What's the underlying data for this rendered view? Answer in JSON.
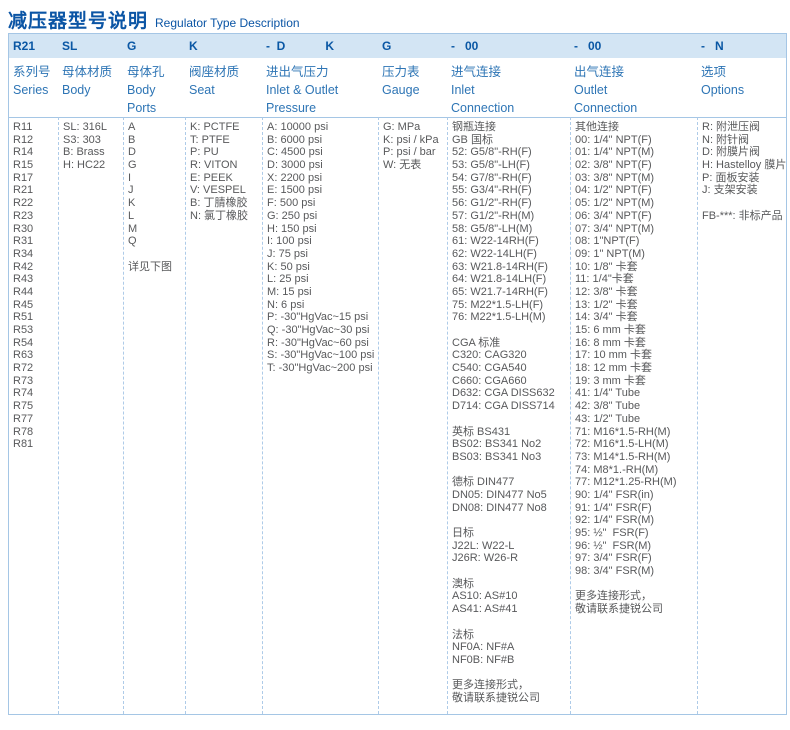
{
  "page": {
    "title_cn": "减压器型号说明",
    "title_en": "Regulator Type Description"
  },
  "colors": {
    "title_blue": "#0b55a5",
    "header_band_bg": "#d3e5f4",
    "header_code_text": "#0a57a4",
    "label_text": "#2e75b5",
    "body_text": "#58595b",
    "border_solid": "#a5c6e5",
    "border_dashed": "#aecbe8"
  },
  "table": {
    "columns": [
      {
        "code": "R21",
        "label_cn": "系列号",
        "label_en": "Series",
        "lines": [
          "R11",
          "R12",
          "R14",
          "R15",
          "R17",
          "R21",
          "R22",
          "R23",
          "R30",
          "R31",
          "R34",
          "R42",
          "R43",
          "R44",
          "R45",
          "R51",
          "R53",
          "R54",
          "R63",
          "R72",
          "R73",
          "R74",
          "R75",
          "R77",
          "R78",
          "R81"
        ]
      },
      {
        "code": "SL",
        "label_cn": "母体材质",
        "label_en": "Body",
        "lines": [
          "SL: 316L",
          "S3: 303",
          "B: Brass",
          "H: HC22"
        ]
      },
      {
        "code": "G",
        "label_cn": "母体孔",
        "label_en": "Body\nPorts",
        "lines": [
          "A",
          "B",
          "D",
          "G",
          "I",
          "J",
          "K",
          "L",
          "M",
          "Q",
          "",
          "详见下图"
        ]
      },
      {
        "code": "K",
        "label_cn": "阀座材质",
        "label_en": "Seat",
        "lines": [
          "K: PCTFE",
          "T: PTFE",
          "P: PU",
          "R: VITON",
          "E: PEEK",
          "V: VESPEL",
          "B: 丁腈橡胶",
          "N: 氯丁橡胶"
        ]
      },
      {
        "code": "-  D            K",
        "label_cn": "进出气压力",
        "label_en": "Inlet & Outlet\nPressure",
        "lines": [
          "A: 10000 psi",
          "B: 6000 psi",
          "C: 4500 psi",
          "D: 3000 psi",
          "X: 2200 psi",
          "E: 1500 psi",
          "F: 500 psi",
          "G: 250 psi",
          "H: 150 psi",
          "I: 100 psi",
          "J: 75 psi",
          "K: 50 psi",
          "L: 25 psi",
          "M: 15 psi",
          "N: 6 psi",
          "P: -30\"HgVac~15 psi",
          "Q: -30\"HgVac~30 psi",
          "R: -30\"HgVac~60 psi",
          "S: -30\"HgVac~100 psi",
          "T: -30\"HgVac~200 psi"
        ]
      },
      {
        "code": "G",
        "label_cn": "压力表",
        "label_en": "Gauge",
        "lines": [
          "G: MPa",
          "K: psi / kPa",
          "P: psi / bar",
          "W: 无表"
        ]
      },
      {
        "code": "-   00",
        "label_cn": "进气连接",
        "label_en": "Inlet\nConnection",
        "lines": [
          "钢瓶连接",
          "GB 国标",
          "52: G5/8\"-RH(F)",
          "53: G5/8\"-LH(F)",
          "54: G7/8\"-RH(F)",
          "55: G3/4\"-RH(F)",
          "56: G1/2\"-RH(F)",
          "57: G1/2\"-RH(M)",
          "58: G5/8\"-LH(M)",
          "61: W22-14RH(F)",
          "62: W22-14LH(F)",
          "63: W21.8-14RH(F)",
          "64: W21.8-14LH(F)",
          "65: W21.7-14RH(F)",
          "75: M22*1.5-LH(F)",
          "76: M22*1.5-LH(M)",
          "",
          "CGA 标准",
          "C320: CAG320",
          "C540: CGA540",
          "C660: CGA660",
          "D632: CGA DISS632",
          "D714: CGA DISS714",
          "",
          "英标 BS431",
          "BS02: BS341 No2",
          "BS03: BS341 No3",
          "",
          "德标 DIN477",
          "DN05: DIN477 No5",
          "DN08: DIN477 No8",
          "",
          "日标",
          "J22L: W22-L",
          "J26R: W26-R",
          "",
          "澳标",
          "AS10: AS#10",
          "AS41: AS#41",
          "",
          "法标",
          "NF0A: NF#A",
          "NF0B: NF#B",
          "",
          "更多连接形式，",
          "敬请联系捷锐公司"
        ]
      },
      {
        "code": "-   00",
        "label_cn": "出气连接",
        "label_en": "Outlet\nConnection",
        "lines": [
          "其他连接",
          "00: 1/4\" NPT(F)",
          "01: 1/4\" NPT(M)",
          "02: 3/8\" NPT(F)",
          "03: 3/8\" NPT(M)",
          "04: 1/2\" NPT(F)",
          "05: 1/2\" NPT(M)",
          "06: 3/4\" NPT(F)",
          "07: 3/4\" NPT(M)",
          "08: 1\"NPT(F)",
          "09: 1\" NPT(M)",
          "10: 1/8\" 卡套",
          "11: 1/4\"卡套",
          "12: 3/8\" 卡套",
          "13: 1/2\" 卡套",
          "14: 3/4\" 卡套",
          "15: 6 mm 卡套",
          "16: 8 mm 卡套",
          "17: 10 mm 卡套",
          "18: 12 mm 卡套",
          "19: 3 mm 卡套",
          "41: 1/4\" Tube",
          "42: 3/8\" Tube",
          "43: 1/2\" Tube",
          "71: M16*1.5-RH(M)",
          "72: M16*1.5-LH(M)",
          "73: M14*1.5-RH(M)",
          "74: M8*1.-RH(M)",
          "77: M12*1.25-RH(M)",
          "90: 1/4\" FSR(in)",
          "91: 1/4\" FSR(F)",
          "92: 1/4\" FSR(M)",
          "95: ½\"  FSR(F)",
          "96: ½\"  FSR(M)",
          "97: 3/4\" FSR(F)",
          "98: 3/4\" FSR(M)",
          "",
          "更多连接形式，",
          "敬请联系捷锐公司"
        ]
      },
      {
        "code": "-   N",
        "label_cn": "选项",
        "label_en": "Options",
        "lines": [
          "R: 附泄压阀",
          "N: 附针阀",
          "D: 附膜片阀",
          "H: Hastelloy 膜片",
          "P: 面板安装",
          "J: 支架安装",
          "",
          "FB-***: 非标产品"
        ]
      }
    ]
  }
}
